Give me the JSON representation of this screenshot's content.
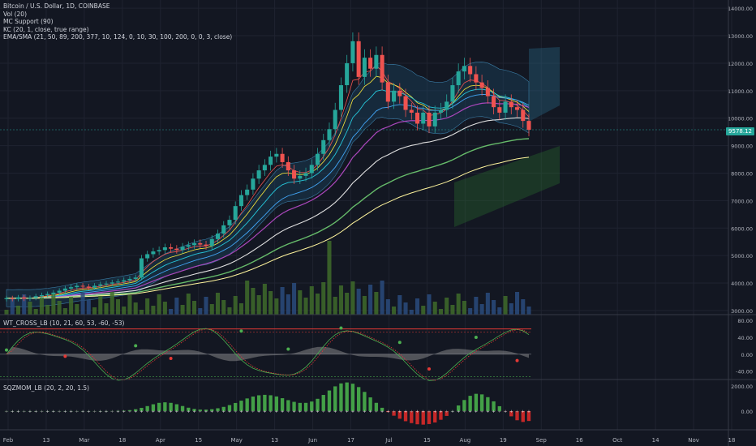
{
  "legend": {
    "symbol": "Bitcoin / U.S. Dollar, 1D, COINBASE",
    "vol": "Vol (20)",
    "mc": "MC Support (90)",
    "kc": "KC (20, 1, close, true range)",
    "ema": "EMA/SMA (21, 50, 89, 200, 377, 10, 124, 0, 10, 30, 100, 200, 0, 0, 3, close)"
  },
  "panes": {
    "wt": "WT_CROSS_LB (10, 21, 60, 53, -60, -53)",
    "sqz": "SQZMOM_LB (20, 2, 20, 1.5)"
  },
  "last_price": "9578.12",
  "colors": {
    "background": "#131722",
    "up": "#26a69a",
    "down": "#ef5350",
    "grid": "#1f2330",
    "axis_text": "#b2b5be"
  },
  "chart_data": {
    "type": "candlestick",
    "price_ticks": [
      "14000.00",
      "13000.00",
      "12000.00",
      "11000.00",
      "10000.00",
      "9000.00",
      "8000.00",
      "7000.00",
      "6000.00",
      "5000.00",
      "4000.00",
      "3000.00"
    ],
    "price_range": [
      2850,
      14300
    ],
    "date_ticks": [
      "Feb",
      "13",
      "Mar",
      "18",
      "Apr",
      "15",
      "May",
      "13",
      "Jun",
      "17",
      "Jul",
      "15",
      "Aug",
      "19",
      "Sep",
      "16",
      "Oct",
      "14",
      "Nov",
      "18"
    ],
    "wt_ticks": [
      "80.00",
      "40.00",
      "0.00",
      "-40.00"
    ],
    "wt_range": [
      -60,
      90
    ],
    "sqz_ticks": [
      "2000.00",
      "0.00"
    ],
    "sqz_range": [
      -1500,
      2400
    ],
    "closes": [
      3450,
      3420,
      3480,
      3430,
      3460,
      3520,
      3560,
      3600,
      3650,
      3720,
      3800,
      3850,
      3900,
      3870,
      3830,
      3900,
      3950,
      3980,
      4020,
      4050,
      4100,
      4150,
      4200,
      4900,
      5050,
      5150,
      5200,
      5300,
      5250,
      5200,
      5320,
      5380,
      5450,
      5400,
      5350,
      5600,
      5800,
      6100,
      6300,
      6800,
      7200,
      7400,
      7800,
      8100,
      8300,
      8600,
      8700,
      8400,
      8100,
      7800,
      7900,
      8000,
      8300,
      8700,
      9200,
      9600,
      10300,
      11200,
      12000,
      12800,
      11500,
      12200,
      11800,
      12300,
      11300,
      10600,
      11000,
      10800,
      10300,
      10200,
      9800,
      10200,
      9700,
      10200,
      10300,
      10600,
      11200,
      11700,
      11900,
      11600,
      11300,
      11100,
      10800,
      10400,
      10200,
      10600,
      10400,
      10300,
      9900,
      9578
    ],
    "wt_marks": [
      {
        "index": 0,
        "value": 10
      },
      {
        "index": 10,
        "value": -5
      },
      {
        "index": 22,
        "value": 20
      },
      {
        "index": 28,
        "value": -10
      },
      {
        "index": 40,
        "value": 55
      },
      {
        "index": 48,
        "value": 12
      },
      {
        "index": 57,
        "value": 62
      },
      {
        "index": 67,
        "value": 28
      },
      {
        "index": 72,
        "value": -35
      },
      {
        "index": 80,
        "value": 40
      },
      {
        "index": 87,
        "value": -15
      }
    ]
  }
}
